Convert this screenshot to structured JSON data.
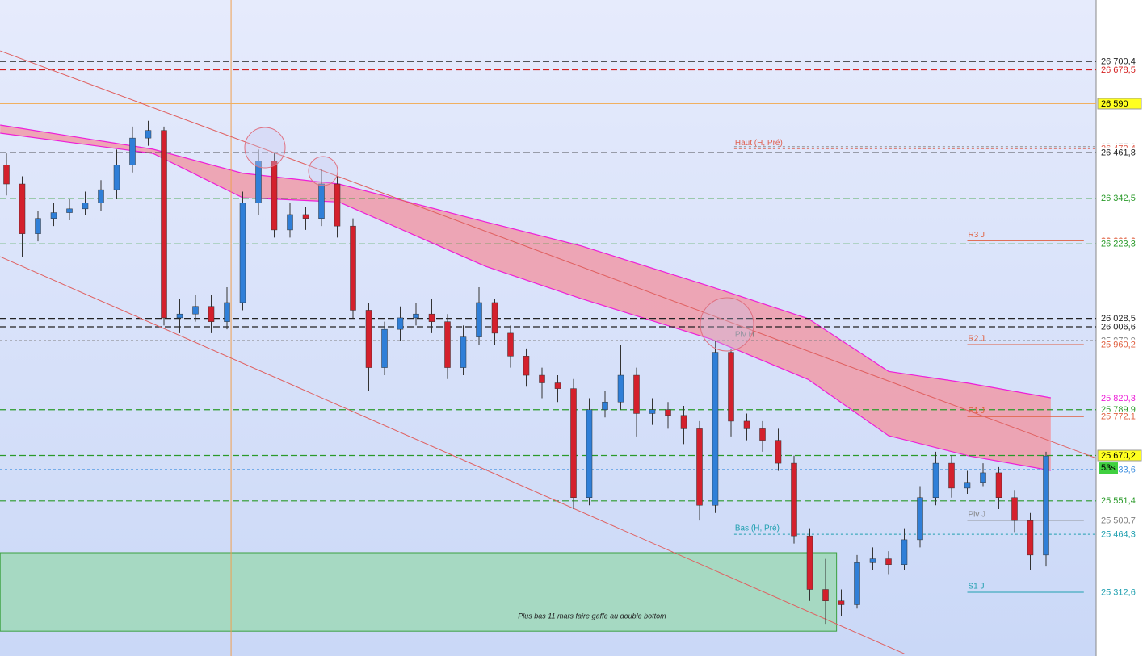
{
  "chart_data": {
    "type": "candlestick",
    "ylim": [
      25146,
      26861
    ],
    "open": [
      26430,
      26380,
      26250,
      26290,
      26305,
      26315,
      26330,
      26365,
      26430,
      26500,
      26520,
      26030,
      26040,
      26060,
      26020,
      26070,
      26330,
      26440,
      26260,
      26300,
      26290,
      26380,
      26270,
      26050,
      25900,
      26000,
      26030,
      26040,
      26020,
      25900,
      25980,
      26070,
      25990,
      25930,
      25880,
      25860,
      25845,
      25560,
      25790,
      25810,
      25880,
      25780,
      25790,
      25775,
      25740,
      25540,
      25940,
      25760,
      25740,
      25710,
      25650,
      25460,
      25320,
      25290,
      25280,
      25390,
      25400,
      25385,
      25450,
      25560,
      25650,
      25585,
      25600,
      25625,
      25560,
      25500,
      25410
    ],
    "high": [
      26460,
      26400,
      26310,
      26330,
      26340,
      26360,
      26390,
      26470,
      26530,
      26545,
      26530,
      26080,
      26090,
      26090,
      26110,
      26360,
      26470,
      26460,
      26330,
      26320,
      26420,
      26400,
      26290,
      26070,
      26020,
      26060,
      26070,
      26080,
      26040,
      26010,
      26110,
      26080,
      26010,
      25950,
      25900,
      25880,
      25870,
      25820,
      25840,
      25960,
      25900,
      25820,
      25810,
      25800,
      25760,
      25970,
      25950,
      25780,
      25760,
      25740,
      25670,
      25480,
      25400,
      25320,
      25410,
      25430,
      25420,
      25480,
      25590,
      25680,
      25670,
      25630,
      25650,
      25640,
      25580,
      25520,
      25680
    ],
    "low": [
      26350,
      26190,
      26230,
      26270,
      26285,
      26300,
      26310,
      26340,
      26410,
      26480,
      26010,
      25990,
      26020,
      25990,
      26000,
      26050,
      26300,
      26240,
      26240,
      26260,
      26270,
      26240,
      26030,
      25840,
      25880,
      25970,
      26010,
      25990,
      25870,
      25880,
      25960,
      25960,
      25900,
      25850,
      25820,
      25810,
      25530,
      25540,
      25770,
      25790,
      25720,
      25750,
      25740,
      25700,
      25500,
      25520,
      25720,
      25710,
      25680,
      25630,
      25440,
      25290,
      25230,
      25250,
      25270,
      25370,
      25360,
      25370,
      25430,
      25540,
      25560,
      25570,
      25590,
      25530,
      25470,
      25370,
      25380
    ],
    "close": [
      26380,
      26250,
      26290,
      26305,
      26315,
      26330,
      26365,
      26430,
      26500,
      26520,
      26030,
      26040,
      26060,
      26020,
      26070,
      26330,
      26440,
      26260,
      26300,
      26290,
      26380,
      26270,
      26050,
      25900,
      26000,
      26030,
      26040,
      26020,
      25900,
      25980,
      26070,
      25990,
      25930,
      25880,
      25860,
      25845,
      25560,
      25790,
      25810,
      25880,
      25780,
      25790,
      25775,
      25740,
      25540,
      25940,
      25760,
      25740,
      25710,
      25650,
      25460,
      25320,
      25290,
      25280,
      25390,
      25400,
      25385,
      25450,
      25560,
      25650,
      25585,
      25600,
      25625,
      25560,
      25500,
      25410,
      25669
    ],
    "up_color": "#2f7fd8",
    "down_color": "#d4202c",
    "band": {
      "x": [
        -0.4,
        9.3,
        15,
        21.1,
        30.4,
        36.5,
        44.7,
        50.9,
        56,
        61.1,
        66.3
      ],
      "upper": [
        26534,
        26471,
        26408,
        26380,
        26281,
        26218,
        26112,
        26028,
        25890,
        25859,
        25821
      ],
      "lower": [
        26513,
        26460,
        26344,
        26333,
        26165,
        26080,
        25975,
        25869,
        25722,
        25669,
        25631
      ],
      "color": "#ee1fd8",
      "fill": "#f09aa8"
    },
    "trendlines": [
      {
        "points": [
          [
            -0.4,
            26728
          ],
          [
            69.2,
            25663
          ]
        ],
        "color": "#e06060"
      },
      {
        "points": [
          [
            -0.4,
            26190
          ],
          [
            57,
            25152
          ]
        ],
        "color": "#e06060"
      }
    ],
    "vline": {
      "x": 14.26,
      "color": "#f0a050"
    },
    "zone": {
      "x": [
        -0.4,
        52.7
      ],
      "y": [
        25211,
        25416
      ],
      "color": "#9fd8b8",
      "text": "Plus bas 11 mars faire gaffe au double bottom"
    },
    "countdown": "53s",
    "levels": [
      {
        "value": 26700.4,
        "label": "26 700,4",
        "color": "#222222",
        "style": "dash"
      },
      {
        "value": 26678.5,
        "label": "26 678,5",
        "color": "#d42020",
        "style": "dash"
      },
      {
        "value": 26590,
        "label": "26 590",
        "color": "#f0b060",
        "style": "solid",
        "label_bg": "#ffff20",
        "text_color": "#000000"
      },
      {
        "value": 26477.6,
        "label": "26 477,6",
        "color": "#909090",
        "style": "dot",
        "x_range": [
          46.2,
          69.2
        ]
      },
      {
        "value": 26472.4,
        "label": "26 472,4",
        "color": "#e06050",
        "style": "dot",
        "x_range": [
          46.2,
          69.2
        ],
        "name": "Haut (H, Pré)"
      },
      {
        "value": 26461.8,
        "label": "26 461,8",
        "color": "#222222",
        "style": "dash"
      },
      {
        "value": 26342.5,
        "label": "26 342,5",
        "color": "#2a9a2a",
        "style": "dash"
      },
      {
        "value": 26231.6,
        "label": "26 231,6",
        "color": "#e06040",
        "style": "solid",
        "x_range": [
          61,
          68.4
        ],
        "name": "R3 J",
        "bold": true
      },
      {
        "value": 26223.3,
        "label": "26 223,3",
        "color": "#2a9a2a",
        "style": "dash"
      },
      {
        "value": 26028.5,
        "label": "26 028,5",
        "color": "#222222",
        "style": "dash"
      },
      {
        "value": 26006.6,
        "label": "26 006,6",
        "color": "#222222",
        "style": "dash"
      },
      {
        "value": 25970.9,
        "label": "25 970,9",
        "color": "#808080",
        "style": "dot",
        "name": "Piv H",
        "name_at": 46.2
      },
      {
        "value": 25960.2,
        "label": "25 960,2",
        "color": "#e06040",
        "style": "solid",
        "x_range": [
          61,
          68.4
        ],
        "name": "R2 J"
      },
      {
        "value": 25820.3,
        "label": "25 820,3",
        "color": "#ee1fd8",
        "style": "none"
      },
      {
        "value": 25789.9,
        "label": "25 789,9",
        "color": "#2a9a2a",
        "style": "dash"
      },
      {
        "value": 25772.1,
        "label": "25 772,1",
        "color": "#e06040",
        "style": "solid",
        "x_range": [
          61,
          68.4
        ],
        "name": "R1 J"
      },
      {
        "value": 25670.2,
        "label": "25 670,2",
        "color": "#2a9a2a",
        "style": "dash",
        "label_bg": "#ffff20",
        "text_color": "#000000"
      },
      {
        "value": 25633.6,
        "label": "25 633,6",
        "color": "#4090e0",
        "style": "dot"
      },
      {
        "value": 25551.4,
        "label": "25 551,4",
        "color": "#2a9a2a",
        "style": "dash"
      },
      {
        "value": 25500.7,
        "label": "25 500,7",
        "color": "#808080",
        "style": "solid",
        "x_range": [
          61,
          68.4
        ],
        "name": "Piv J"
      },
      {
        "value": 25464.3,
        "label": "25 464,3",
        "color": "#20a0b0",
        "style": "dot",
        "x_range": [
          46.2,
          69.2
        ],
        "name": "Bas (H, Pré)"
      },
      {
        "value": 25312.6,
        "label": "25 312,6",
        "color": "#20a0b0",
        "style": "solid",
        "x_range": [
          61,
          68.4
        ],
        "name": "S1 J"
      }
    ]
  }
}
